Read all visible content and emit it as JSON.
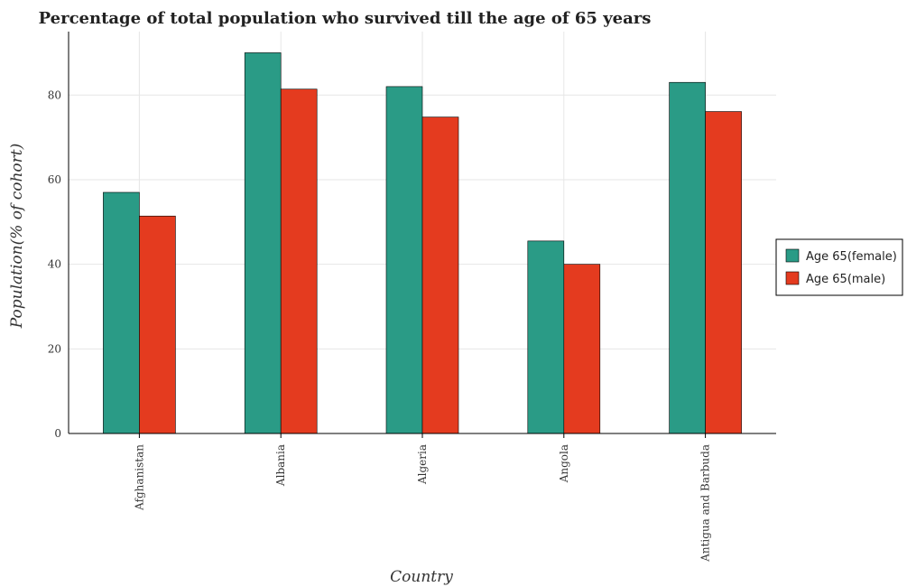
{
  "chart_data": {
    "type": "bar",
    "title": "Percentage of total population who survived till the age of 65 years",
    "xlabel": "Country",
    "ylabel": "Population(% of cohort)",
    "categories": [
      "Afghanistan",
      "Albania",
      "Algeria",
      "Angola",
      "Antigua and Barbuda"
    ],
    "series": [
      {
        "name": "Age 65(female)",
        "color": "#2a9b86",
        "values": [
          57.0,
          90.0,
          82.0,
          45.5,
          83.0
        ]
      },
      {
        "name": "Age 65(male)",
        "color": "#e43b1f",
        "values": [
          51.4,
          81.4,
          74.8,
          40.0,
          76.1
        ]
      }
    ],
    "ylim": [
      0,
      95
    ],
    "yticks": [
      0,
      20,
      40,
      60,
      80
    ],
    "grid": true,
    "legend_position": "right"
  }
}
